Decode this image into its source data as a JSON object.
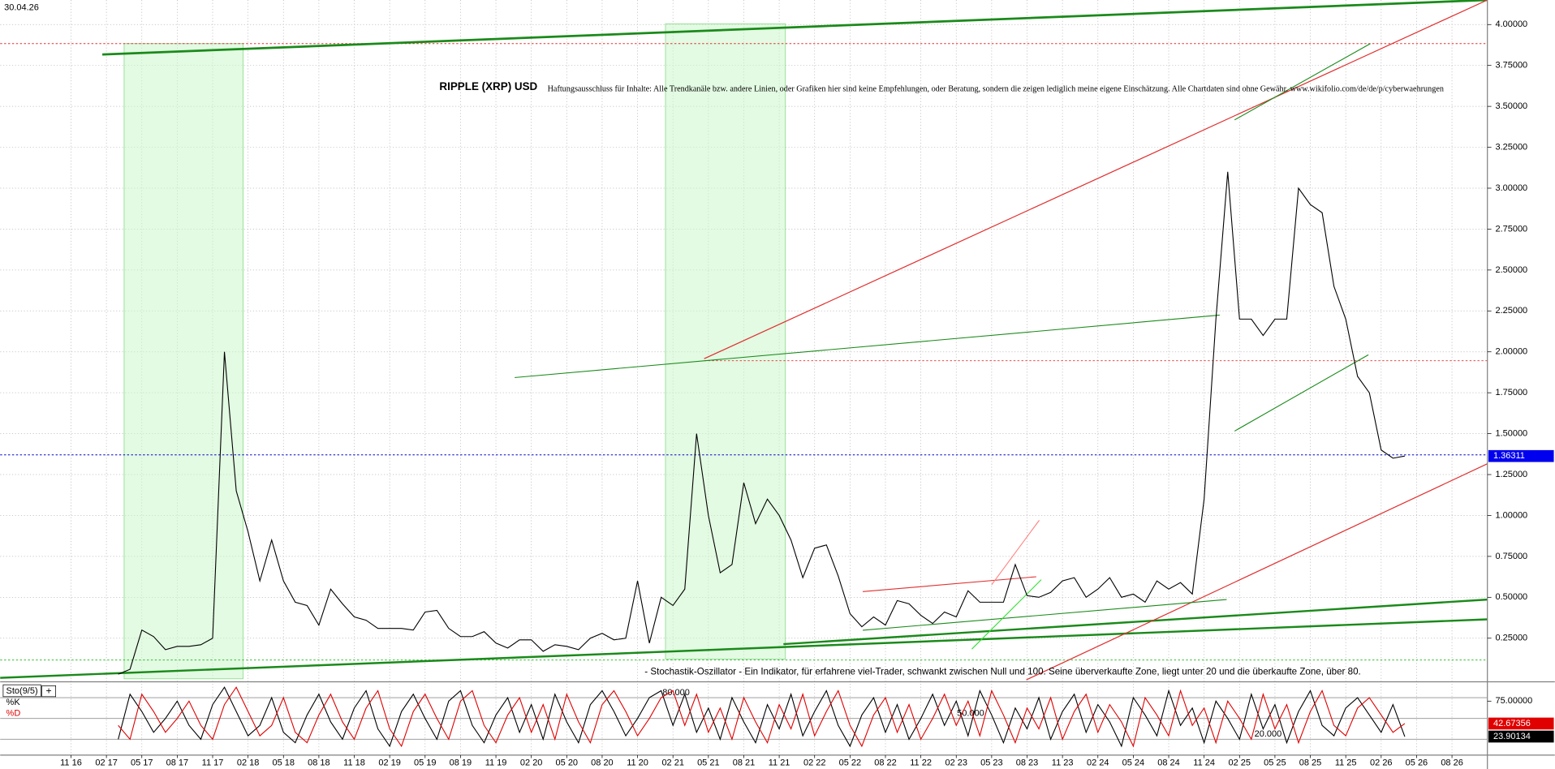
{
  "date": "30.04.26",
  "chart_data": {
    "type": "line",
    "title": "RIPPLE (XRP) USD",
    "disclaimer": "Haftungsausschluss für Inhalte: Alle Trendkanäle bzw. andere Linien, oder Grafiken hier sind keine Empfehlungen, oder Beratung, sondern die zeigen lediglich meine eigene Einschätzung. Alle Chartdaten sind ohne Gewähr. www.wikifolio.com/de/de/p/cyberwaehrungen",
    "annotation": "- Stochastik-Oszillator - Ein Indikator, für erfahrene viel-Trader, schwankt zwischen Null und 100. Seine überverkaufte Zone, liegt unter 20 und die überkaufte Zone, über 80.",
    "xlim": [
      "2016-05",
      "2026-11"
    ],
    "xticks": [
      {
        "value": "2016-11",
        "label": "11 16"
      },
      {
        "value": "2017-02",
        "label": "02 17"
      },
      {
        "value": "2017-05",
        "label": "05 17"
      },
      {
        "value": "2017-08",
        "label": "08 17"
      },
      {
        "value": "2017-11",
        "label": "11 17"
      },
      {
        "value": "2018-02",
        "label": "02 18"
      },
      {
        "value": "2018-05",
        "label": "05 18"
      },
      {
        "value": "2018-08",
        "label": "08 18"
      },
      {
        "value": "2018-11",
        "label": "11 18"
      },
      {
        "value": "2019-02",
        "label": "02 19"
      },
      {
        "value": "2019-05",
        "label": "05 19"
      },
      {
        "value": "2019-08",
        "label": "08 19"
      },
      {
        "value": "2019-11",
        "label": "11 19"
      },
      {
        "value": "2020-02",
        "label": "02 20"
      },
      {
        "value": "2020-05",
        "label": "05 20"
      },
      {
        "value": "2020-08",
        "label": "08 20"
      },
      {
        "value": "2020-11",
        "label": "11 20"
      },
      {
        "value": "2021-02",
        "label": "02 21"
      },
      {
        "value": "2021-05",
        "label": "05 21"
      },
      {
        "value": "2021-08",
        "label": "08 21"
      },
      {
        "value": "2021-11",
        "label": "11 21"
      },
      {
        "value": "2022-02",
        "label": "02 22"
      },
      {
        "value": "2022-05",
        "label": "05 22"
      },
      {
        "value": "2022-08",
        "label": "08 22"
      },
      {
        "value": "2022-11",
        "label": "11 22"
      },
      {
        "value": "2023-02",
        "label": "02 23"
      },
      {
        "value": "2023-05",
        "label": "05 23"
      },
      {
        "value": "2023-08",
        "label": "08 23"
      },
      {
        "value": "2023-11",
        "label": "11 23"
      },
      {
        "value": "2024-02",
        "label": "02 24"
      },
      {
        "value": "2024-05",
        "label": "05 24"
      },
      {
        "value": "2024-08",
        "label": "08 24"
      },
      {
        "value": "2024-11",
        "label": "11 24"
      },
      {
        "value": "2025-02",
        "label": "02 25"
      },
      {
        "value": "2025-05",
        "label": "05 25"
      },
      {
        "value": "2025-08",
        "label": "08 25"
      },
      {
        "value": "2025-11",
        "label": "11 25"
      },
      {
        "value": "2026-02",
        "label": "02 26"
      },
      {
        "value": "2026-05",
        "label": "05 26"
      },
      {
        "value": "2026-08",
        "label": "08 26"
      }
    ],
    "ylim": [
      0,
      4.15
    ],
    "yticks": [
      {
        "value": 0.25,
        "label": "0.25000"
      },
      {
        "value": 0.5,
        "label": "0.50000"
      },
      {
        "value": 0.75,
        "label": "0.75000"
      },
      {
        "value": 1,
        "label": "1.00000"
      },
      {
        "value": 1.25,
        "label": "1.25000"
      },
      {
        "value": 1.5,
        "label": "1.50000"
      },
      {
        "value": 1.75,
        "label": "1.75000"
      },
      {
        "value": 2,
        "label": "2.00000"
      },
      {
        "value": 2.25,
        "label": "2.25000"
      },
      {
        "value": 2.5,
        "label": "2.50000"
      },
      {
        "value": 2.75,
        "label": "2.75000"
      },
      {
        "value": 3,
        "label": "3.00000"
      },
      {
        "value": 3.25,
        "label": "3.25000"
      },
      {
        "value": 3.5,
        "label": "3.50000"
      },
      {
        "value": 3.75,
        "label": "3.75000"
      },
      {
        "value": 4,
        "label": "4.00000"
      }
    ],
    "grid": true,
    "x": [
      "2017-03",
      "2017-04",
      "2017-05",
      "2017-06",
      "2017-07",
      "2017-08",
      "2017-09",
      "2017-10",
      "2017-11",
      "2017-12",
      "2018-01",
      "2018-02",
      "2018-03",
      "2018-04",
      "2018-05",
      "2018-06",
      "2018-07",
      "2018-08",
      "2018-09",
      "2018-10",
      "2018-11",
      "2018-12",
      "2019-01",
      "2019-02",
      "2019-03",
      "2019-04",
      "2019-05",
      "2019-06",
      "2019-07",
      "2019-08",
      "2019-09",
      "2019-10",
      "2019-11",
      "2019-12",
      "2020-01",
      "2020-02",
      "2020-03",
      "2020-04",
      "2020-05",
      "2020-06",
      "2020-07",
      "2020-08",
      "2020-09",
      "2020-10",
      "2020-11",
      "2020-12",
      "2021-01",
      "2021-02",
      "2021-03",
      "2021-04",
      "2021-05",
      "2021-06",
      "2021-07",
      "2021-08",
      "2021-09",
      "2021-10",
      "2021-11",
      "2021-12",
      "2022-01",
      "2022-02",
      "2022-03",
      "2022-04",
      "2022-05",
      "2022-06",
      "2022-07",
      "2022-08",
      "2022-09",
      "2022-10",
      "2022-11",
      "2022-12",
      "2023-01",
      "2023-02",
      "2023-03",
      "2023-04",
      "2023-05",
      "2023-06",
      "2023-07",
      "2023-08",
      "2023-09",
      "2023-10",
      "2023-11",
      "2023-12",
      "2024-01",
      "2024-02",
      "2024-03",
      "2024-04",
      "2024-05",
      "2024-06",
      "2024-07",
      "2024-08",
      "2024-09",
      "2024-10",
      "2024-11",
      "2024-12",
      "2025-01",
      "2025-02",
      "2025-03",
      "2025-04",
      "2025-05",
      "2025-06",
      "2025-07",
      "2025-08",
      "2025-09",
      "2025-10",
      "2025-11",
      "2025-12",
      "2026-01",
      "2026-02",
      "2026-03",
      "2026-04"
    ],
    "series": [
      {
        "color": "#000000",
        "values": [
          0.03,
          0.06,
          0.3,
          0.26,
          0.18,
          0.2,
          0.2,
          0.21,
          0.25,
          2.0,
          1.15,
          0.9,
          0.6,
          0.85,
          0.6,
          0.47,
          0.45,
          0.33,
          0.55,
          0.46,
          0.38,
          0.36,
          0.31,
          0.31,
          0.31,
          0.3,
          0.41,
          0.42,
          0.31,
          0.26,
          0.26,
          0.29,
          0.22,
          0.19,
          0.24,
          0.24,
          0.17,
          0.21,
          0.2,
          0.18,
          0.25,
          0.28,
          0.24,
          0.25,
          0.6,
          0.22,
          0.5,
          0.45,
          0.55,
          1.5,
          1.0,
          0.65,
          0.7,
          1.2,
          0.95,
          1.1,
          1.0,
          0.85,
          0.62,
          0.8,
          0.82,
          0.63,
          0.4,
          0.32,
          0.38,
          0.33,
          0.48,
          0.46,
          0.39,
          0.34,
          0.41,
          0.38,
          0.54,
          0.47,
          0.47,
          0.47,
          0.7,
          0.51,
          0.5,
          0.53,
          0.6,
          0.62,
          0.5,
          0.55,
          0.62,
          0.5,
          0.52,
          0.47,
          0.6,
          0.55,
          0.59,
          0.52,
          1.1,
          2.2,
          3.1,
          2.2,
          2.2,
          2.1,
          2.2,
          2.2,
          3.0,
          2.9,
          2.85,
          2.4,
          2.2,
          1.85,
          1.75,
          1.4,
          1.35,
          1.36311
        ]
      }
    ],
    "indicator": {
      "title": "Sto(9/5)",
      "ylim": [
        0,
        100
      ],
      "yticks": [
        {
          "value": 75,
          "label": "75.00000"
        }
      ],
      "levels": [
        {
          "value": 80,
          "label": "80.000"
        },
        {
          "value": 50,
          "label": "50.000"
        },
        {
          "value": 20,
          "label": "20.000"
        }
      ],
      "series": [
        {
          "name": "%K",
          "color": "#000000",
          "values": [
            20,
            85,
            60,
            30,
            50,
            75,
            40,
            20,
            70,
            95,
            60,
            25,
            40,
            80,
            30,
            15,
            55,
            85,
            45,
            20,
            65,
            90,
            35,
            10,
            60,
            85,
            50,
            20,
            75,
            90,
            40,
            15,
            55,
            80,
            30,
            70,
            20,
            85,
            45,
            15,
            70,
            90,
            60,
            25,
            50,
            80,
            90,
            40,
            85,
            30,
            65,
            20,
            80,
            45,
            15,
            70,
            35,
            85,
            25,
            60,
            90,
            40,
            10,
            55,
            80,
            30,
            70,
            20,
            50,
            85,
            40,
            75,
            25,
            90,
            55,
            15,
            65,
            35,
            80,
            20,
            60,
            85,
            30,
            70,
            45,
            10,
            80,
            55,
            25,
            90,
            40,
            65,
            15,
            75,
            50,
            20,
            85,
            35,
            70,
            15,
            60,
            90,
            40,
            25,
            65,
            80,
            55,
            30,
            70,
            23.90134
          ]
        },
        {
          "name": "%D",
          "color": "#e00000",
          "values": [
            40,
            20,
            85,
            60,
            30,
            50,
            75,
            40,
            20,
            70,
            95,
            60,
            25,
            40,
            80,
            30,
            15,
            55,
            85,
            45,
            20,
            65,
            90,
            35,
            10,
            60,
            85,
            50,
            20,
            75,
            90,
            40,
            15,
            55,
            80,
            30,
            70,
            20,
            85,
            45,
            15,
            70,
            90,
            60,
            25,
            50,
            80,
            90,
            40,
            85,
            30,
            65,
            20,
            80,
            45,
            15,
            70,
            35,
            85,
            25,
            60,
            90,
            40,
            10,
            55,
            80,
            30,
            70,
            20,
            50,
            85,
            40,
            75,
            25,
            90,
            55,
            15,
            65,
            35,
            80,
            20,
            60,
            85,
            30,
            70,
            45,
            10,
            80,
            55,
            25,
            90,
            40,
            65,
            15,
            75,
            50,
            20,
            85,
            35,
            70,
            15,
            60,
            90,
            40,
            25,
            65,
            80,
            55,
            30,
            42.67356
          ]
        }
      ]
    }
  }
}
